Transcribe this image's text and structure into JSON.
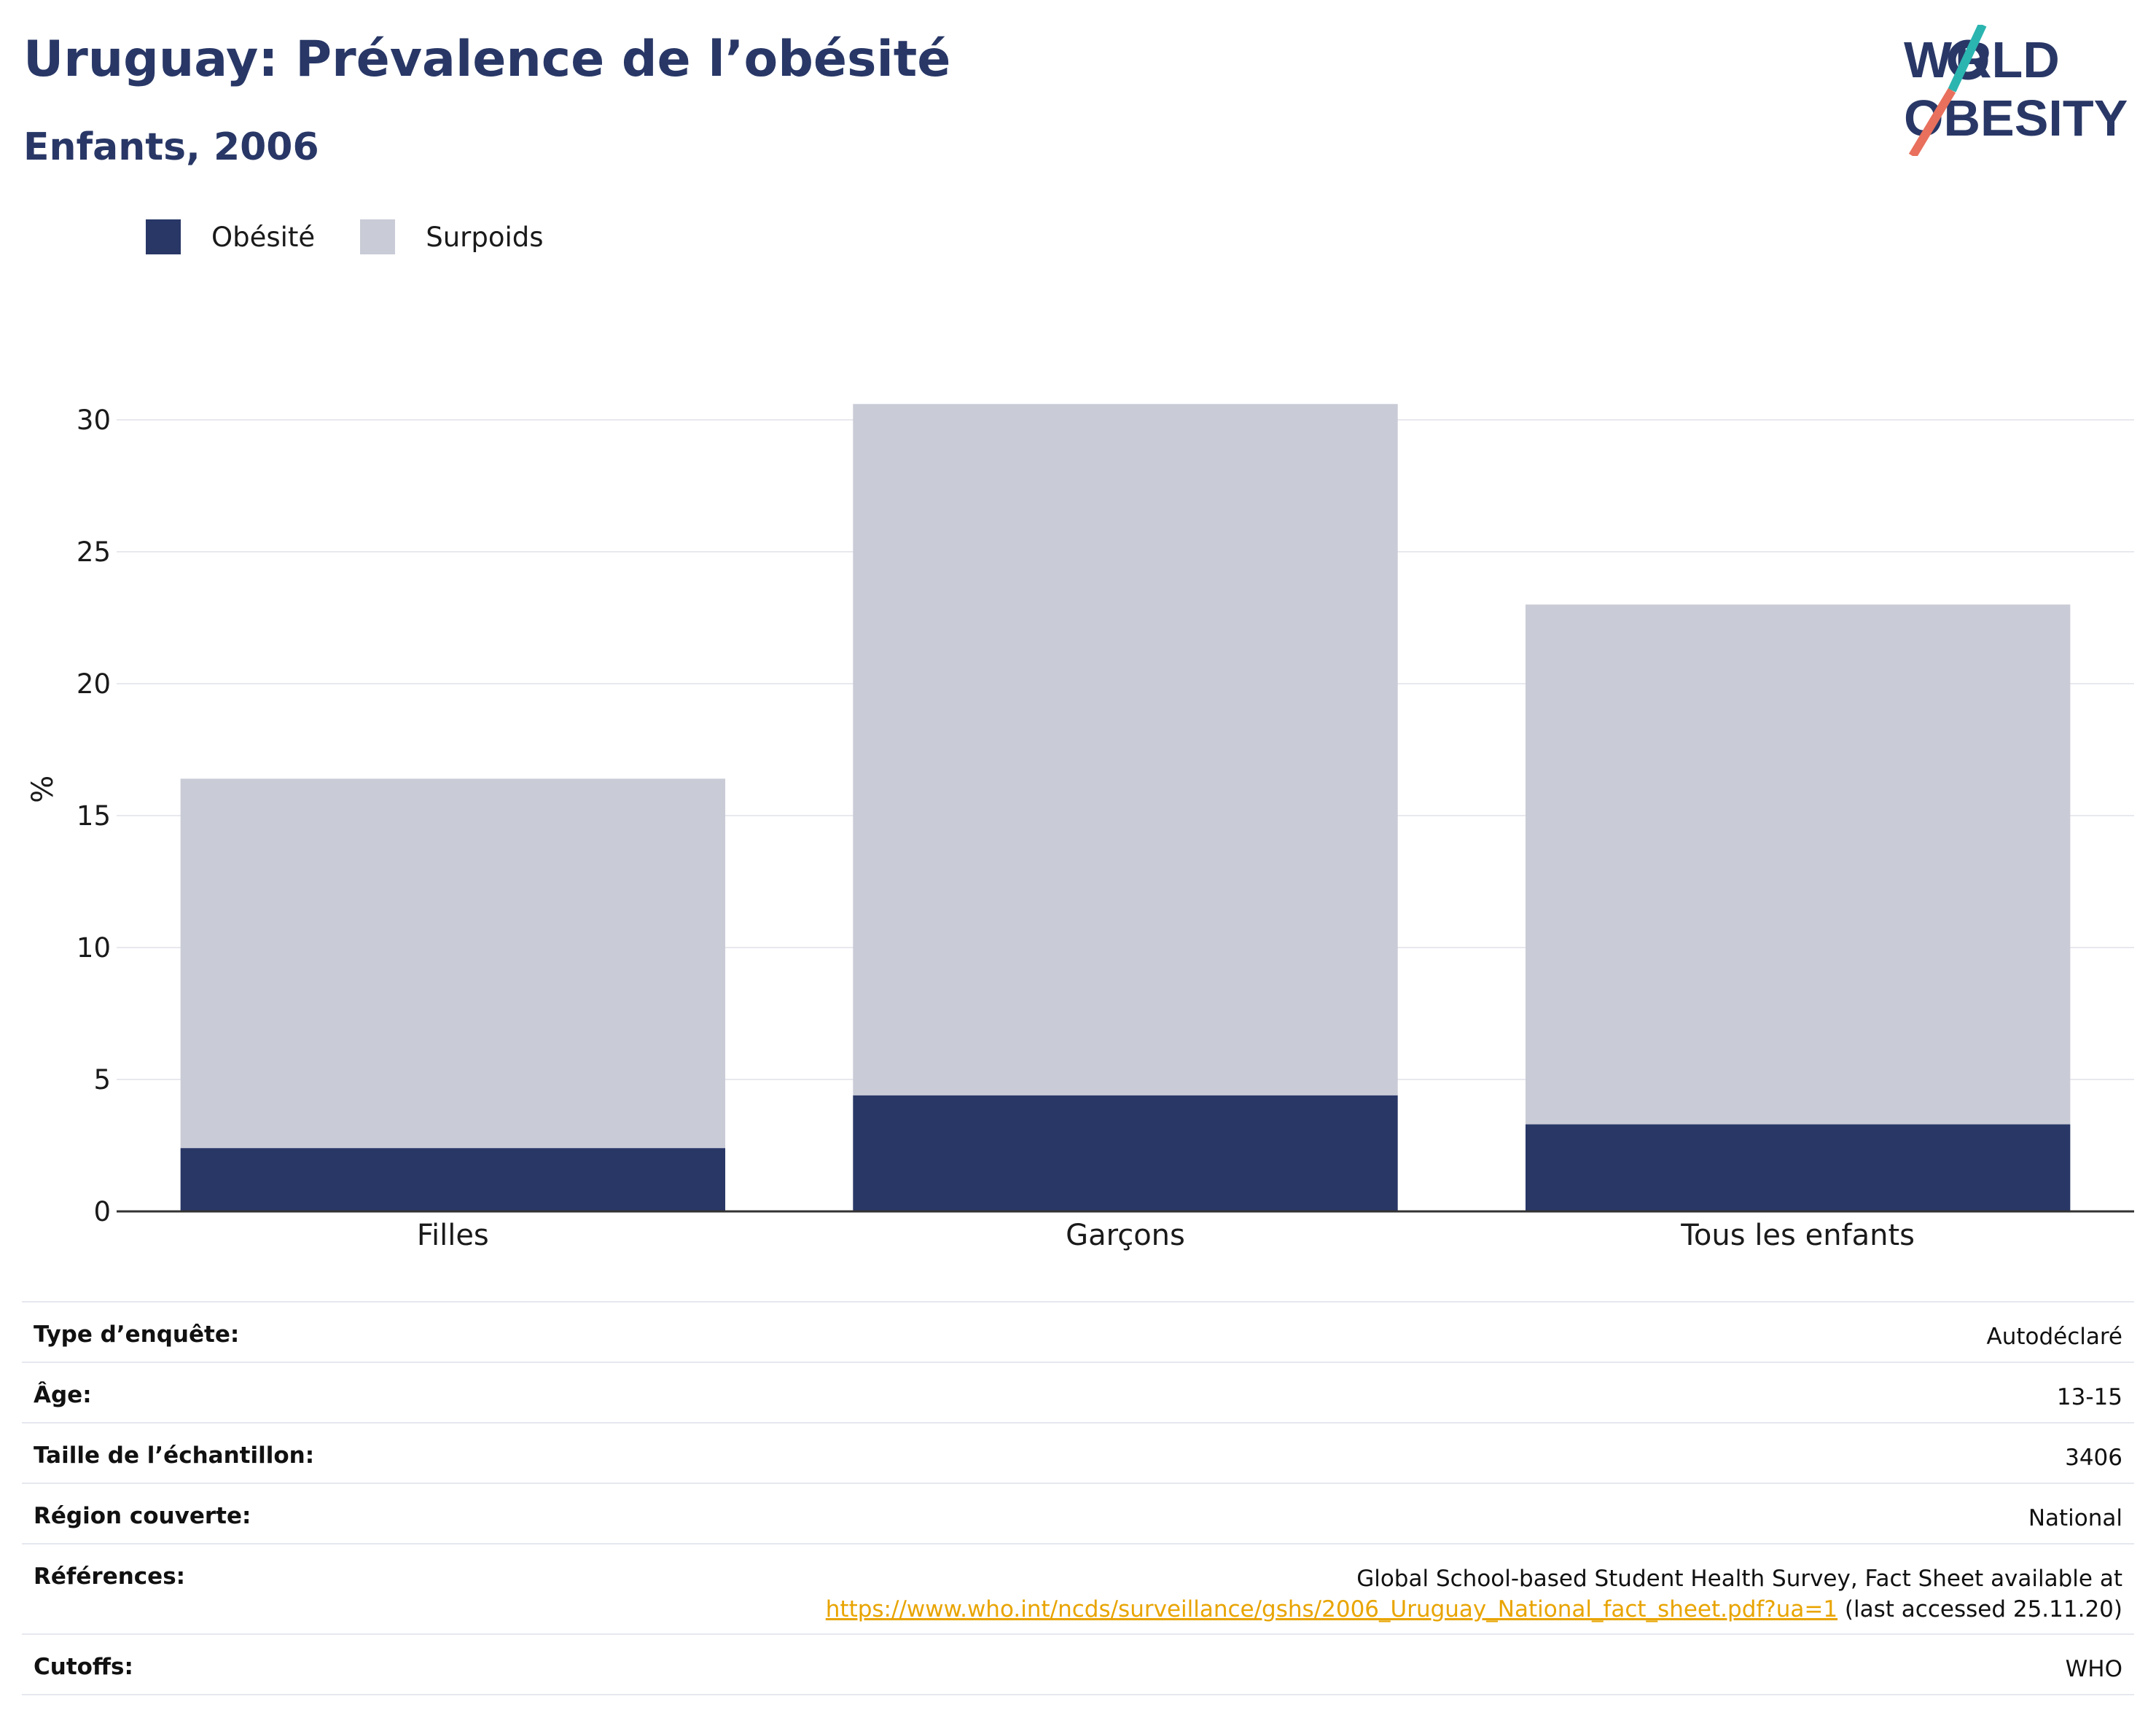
{
  "header": {
    "title": "Uruguay: Prévalence de l’obésité",
    "subtitle": "Enfants, 2006"
  },
  "logo": {
    "line1": "WORLD",
    "line2": "OBESITY",
    "accent_teal": "#2bb5b0",
    "accent_coral": "#e8705c",
    "brand": "#283766"
  },
  "legend": [
    {
      "label": "Obésité",
      "color": "#283766"
    },
    {
      "label": "Surpoids",
      "color": "#c9cbd6"
    }
  ],
  "chart_data": {
    "type": "bar",
    "stacked": true,
    "categories": [
      "Filles",
      "Garçons",
      "Tous les enfants"
    ],
    "series": [
      {
        "name": "Obésité",
        "values": [
          2.4,
          4.4,
          3.3
        ],
        "color": "#283766"
      },
      {
        "name": "Surpoids",
        "values": [
          14.0,
          26.2,
          19.7
        ],
        "color": "#c9cbd6"
      }
    ],
    "ylabel": "%",
    "ylim": [
      0,
      32
    ],
    "yticks": [
      0,
      5,
      10,
      15,
      20,
      25,
      30
    ],
    "grid": true,
    "legend_position": "top-left"
  },
  "info": {
    "rows": [
      {
        "key": "Type d’enquête:",
        "value": "Autodéclaré"
      },
      {
        "key": "Âge:",
        "value": "13-15"
      },
      {
        "key": "Taille de l’échantillon:",
        "value": "3406"
      },
      {
        "key": "Région couverte:",
        "value": "National"
      }
    ],
    "references": {
      "key": "Références:",
      "text": "Global School-based Student Health Survey, Fact Sheet available at",
      "link": "https://www.who.int/ncds/surveillance/gshs/2006_Uruguay_National_fact_sheet.pdf?ua=1",
      "suffix": " (last accessed 25.11.20)"
    },
    "cutoffs": {
      "key": "Cutoffs:",
      "value": "WHO"
    }
  }
}
